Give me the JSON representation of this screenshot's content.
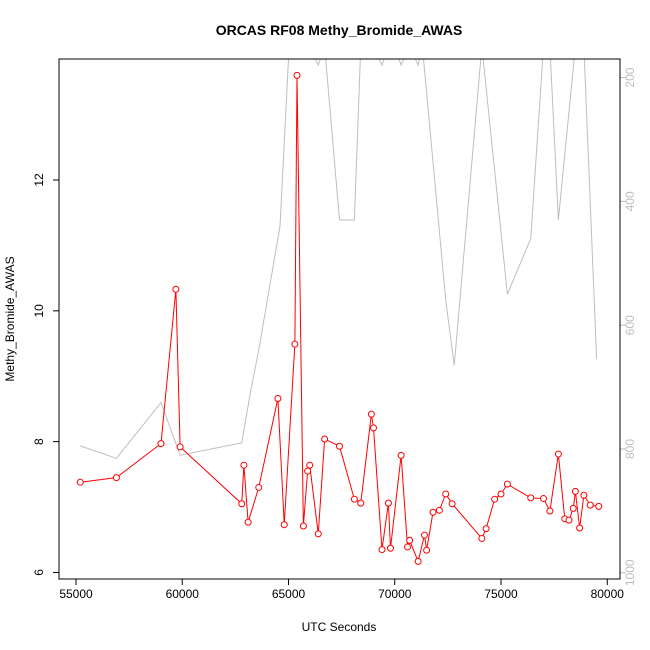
{
  "chart_data": {
    "type": "line",
    "title": "ORCAS RF08 Methy_Bromide_AWAS",
    "xlabel": "UTC Seconds",
    "ylabel": "Methy_Bromide_AWAS",
    "xlim": [
      54200,
      80600
    ],
    "ylim": [
      5.9,
      13.85
    ],
    "y2lim": [
      1010,
      170
    ],
    "y2_reversed": true,
    "grid": false,
    "x_ticks": [
      55000,
      60000,
      65000,
      70000,
      75000,
      80000
    ],
    "x_tick_labels": [
      "55000",
      "60000",
      "65000",
      "70000",
      "75000",
      "80000"
    ],
    "y_ticks": [
      6,
      8,
      10,
      12
    ],
    "y_tick_labels": [
      "6",
      "8",
      "10",
      "12"
    ],
    "y2_ticks": [
      200,
      400,
      600,
      800,
      1000
    ],
    "y2_tick_labels": [
      "200",
      "400",
      "600",
      "800",
      "1000"
    ],
    "colors": {
      "primary": "#ff0000",
      "secondary": "#bebebe",
      "frame": "#000000"
    },
    "series": [
      {
        "axis": "left",
        "style": "line-points",
        "color": "#ff0000",
        "x": [
          55200,
          56900,
          59000,
          59700,
          59900,
          62800,
          62900,
          63100,
          63600,
          64500,
          64800,
          65300,
          65400,
          65700,
          65900,
          66000,
          66400,
          66700,
          67400,
          68100,
          68400,
          68900,
          69000,
          69400,
          69700,
          69800,
          70300,
          70600,
          70700,
          71100,
          71400,
          71500,
          71800,
          72100,
          72400,
          72700,
          74100,
          74300,
          74700,
          75000,
          75300,
          76400,
          77000,
          77300,
          77700,
          78000,
          78200,
          78400,
          78500,
          78700,
          78900,
          79200,
          79600
        ],
        "y": [
          7.38,
          7.45,
          7.97,
          10.33,
          7.92,
          7.05,
          7.64,
          6.77,
          7.3,
          8.66,
          6.73,
          9.49,
          13.6,
          6.71,
          7.55,
          7.64,
          6.59,
          8.04,
          7.93,
          7.12,
          7.06,
          8.42,
          8.21,
          6.35,
          7.06,
          6.37,
          7.79,
          6.39,
          6.49,
          6.17,
          6.57,
          6.34,
          6.92,
          6.95,
          7.2,
          7.05,
          6.52,
          6.67,
          7.12,
          7.2,
          7.35,
          7.14,
          7.13,
          6.94,
          7.81,
          6.82,
          6.8,
          6.98,
          7.24,
          6.68,
          7.18,
          7.03,
          7.01
        ]
      },
      {
        "axis": "right",
        "style": "line",
        "color": "#bebebe",
        "x": [
          55200,
          56900,
          59000,
          59900,
          62800,
          63200,
          63600,
          64600,
          65000,
          65500,
          65700,
          66000,
          66400,
          66700,
          67400,
          68100,
          68400,
          68900,
          69000,
          69400,
          69700,
          70000,
          70300,
          70700,
          71100,
          71300,
          72400,
          72800,
          74100,
          75300,
          76400,
          77000,
          77300,
          77700,
          78500,
          78900,
          79500
        ],
        "y": [
          795,
          815,
          725,
          810,
          790,
          710,
          640,
          440,
          170,
          170,
          170,
          150,
          180,
          150,
          430,
          430,
          150,
          150,
          150,
          180,
          150,
          150,
          180,
          150,
          180,
          150,
          560,
          665,
          150,
          550,
          460,
          150,
          150,
          430,
          150,
          150,
          655
        ]
      }
    ]
  }
}
